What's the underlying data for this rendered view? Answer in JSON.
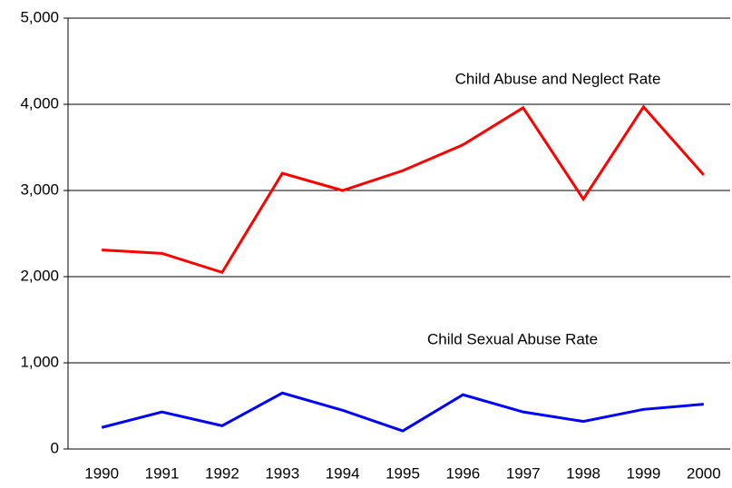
{
  "chart_data": {
    "type": "line",
    "categories": [
      "1990",
      "1991",
      "1992",
      "1993",
      "1994",
      "1995",
      "1996",
      "1997",
      "1998",
      "1999",
      "2000"
    ],
    "series": [
      {
        "name": "Child Abuse and Neglect Rate",
        "color": "#ff0000",
        "values": [
          2310,
          2270,
          2050,
          3200,
          3000,
          3230,
          3530,
          3960,
          2900,
          3970,
          3180
        ]
      },
      {
        "name": "Child Sexual Abuse Rate",
        "color": "#0000ff",
        "values": [
          250,
          430,
          270,
          650,
          450,
          210,
          630,
          430,
          320,
          460,
          520
        ]
      }
    ],
    "ylim": [
      0,
      5000
    ],
    "yticks": [
      0,
      {
        "value": 1000,
        "label": "1,000"
      },
      {
        "value": 2000,
        "label": "2,000"
      },
      {
        "value": 3000,
        "label": "3,000"
      },
      {
        "value": 4000,
        "label": "4,000"
      },
      {
        "value": 5000,
        "label": "5,000"
      }
    ],
    "grid": true
  }
}
